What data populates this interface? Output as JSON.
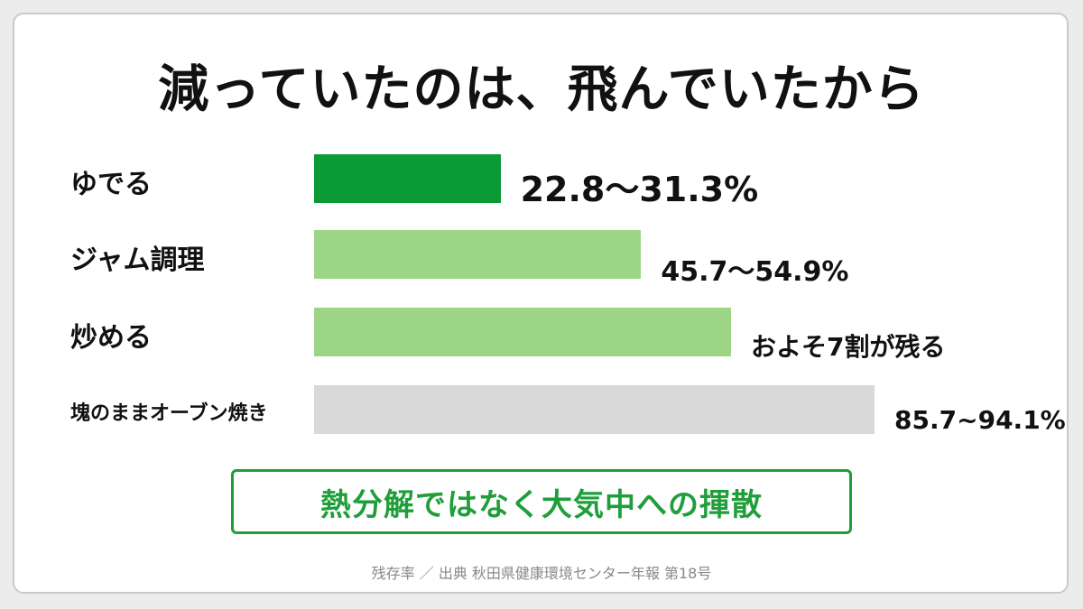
{
  "title": "減っていたのは、飛んでいたから",
  "chart_data": {
    "type": "bar",
    "orientation": "horizontal",
    "categories": [
      "ゆでる",
      "ジャム調理",
      "炒める",
      "塊のままオーブン焼き"
    ],
    "values": [
      31.3,
      54.9,
      70,
      94.1
    ],
    "value_labels": [
      "22.8〜31.3%",
      "45.7〜54.9%",
      "およそ7割が残る",
      "85.7~94.1%"
    ],
    "colors": [
      "#0a9a36",
      "#9dd587",
      "#9dd587",
      "#d9d9d9"
    ],
    "xlim": [
      0,
      100
    ],
    "grid": false
  },
  "conclusion": "熱分解ではなく大気中への揮散",
  "source": "残存率 ／ 出典 秋田県健康環境センター年報 第18号"
}
